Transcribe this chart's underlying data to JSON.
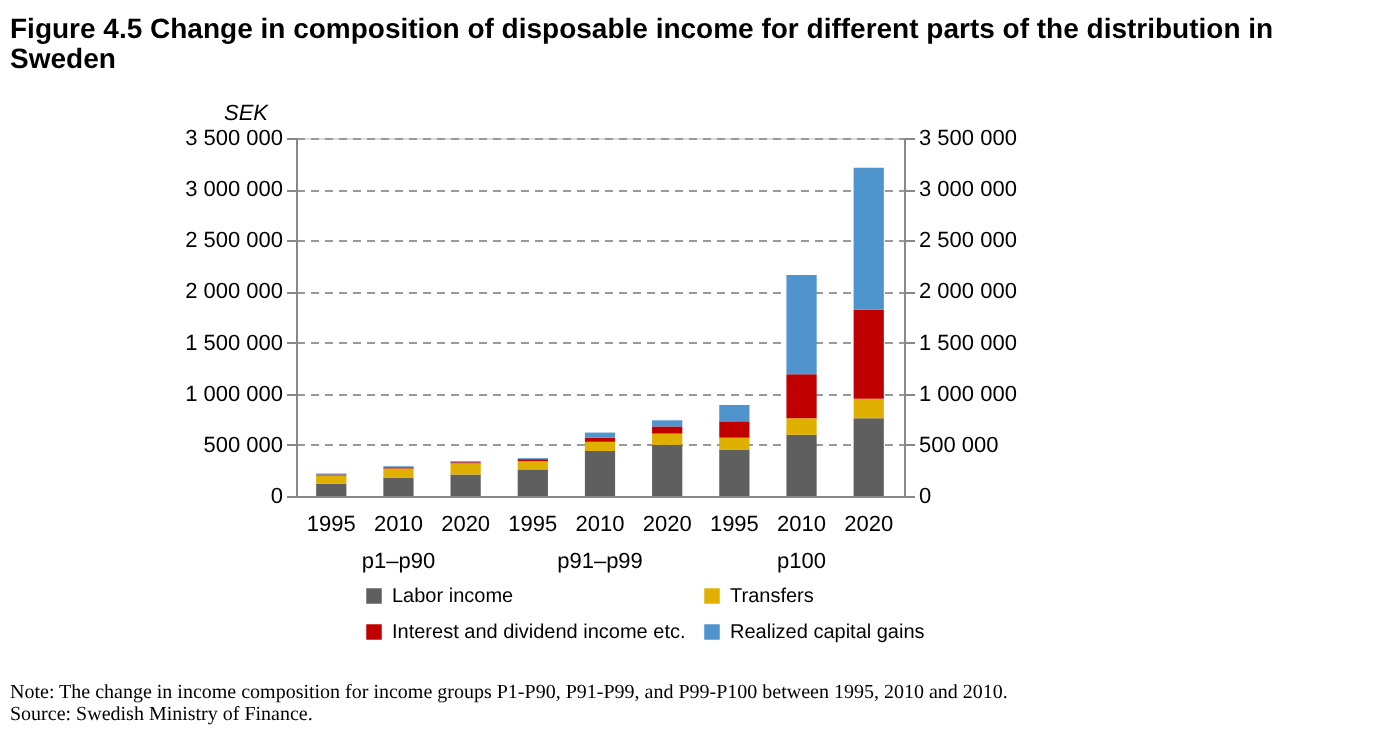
{
  "chart_data": {
    "type": "bar",
    "stacked": true,
    "title": "Figure 4.5 Change in composition of disposable income for different parts of the distribution in Sweden",
    "ylabel": "SEK",
    "categories": [
      "1995",
      "2010",
      "2020",
      "1995",
      "2010",
      "2020",
      "1995",
      "2010",
      "2020"
    ],
    "series": [
      {
        "name": "Labor income",
        "color": "#5f5f5f",
        "values": [
          120000,
          180000,
          210000,
          260000,
          440000,
          500000,
          450000,
          600000,
          760000
        ]
      },
      {
        "name": "Transfers",
        "color": "#e0b000",
        "values": [
          80000,
          90000,
          110000,
          80000,
          90000,
          110000,
          120000,
          160000,
          190000
        ]
      },
      {
        "name": "Interest and dividend income etc.",
        "color": "#c00000",
        "values": [
          10000,
          10000,
          10000,
          20000,
          40000,
          70000,
          160000,
          430000,
          870000
        ]
      },
      {
        "name": "Realized capital gains",
        "color": "#4f94cd",
        "values": [
          10000,
          10000,
          10000,
          10000,
          50000,
          60000,
          160000,
          970000,
          1390000
        ]
      }
    ],
    "ylim": [
      0,
      3500000
    ],
    "yticks": [
      {
        "value": 0,
        "label": "0"
      },
      {
        "value": 500000,
        "label": "500 000"
      },
      {
        "value": 1000000,
        "label": "1 000 000"
      },
      {
        "value": 1500000,
        "label": "1 500 000"
      },
      {
        "value": 2000000,
        "label": "2 000 000"
      },
      {
        "value": 2500000,
        "label": "2 500 000"
      },
      {
        "value": 3000000,
        "label": "3 000 000"
      },
      {
        "value": 3500000,
        "label": "3 500 000"
      }
    ],
    "y2lim": [
      0,
      3500000
    ],
    "y2ticks": [
      {
        "value": 0,
        "label": "0"
      },
      {
        "value": 500000,
        "label": "500 000"
      },
      {
        "value": 1000000,
        "label": "1 000 000"
      },
      {
        "value": 1500000,
        "label": "1 500 000"
      },
      {
        "value": 2000000,
        "label": "2 000 000"
      },
      {
        "value": 2500000,
        "label": "2 500 000"
      },
      {
        "value": 3000000,
        "label": "3 000 000"
      },
      {
        "value": 3500000,
        "label": "3 500 000"
      }
    ],
    "grid": "y",
    "legend": "bottom",
    "annotations": [
      "p1–p90",
      "p91–p99",
      "p100",
      "Note: The change in income composition for income groups P1-P90, P91-P99, and P99-P100 between 1995, 2010 and 2010.",
      "Source: Swedish Ministry of Finance."
    ]
  }
}
